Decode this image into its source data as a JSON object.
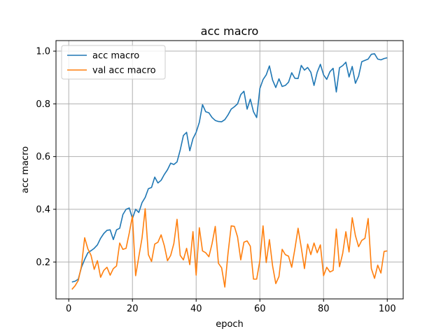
{
  "chart_data": {
    "type": "line",
    "title": "acc macro",
    "xlabel": "epoch",
    "ylabel": "acc macro",
    "xlim": [
      -4,
      105
    ],
    "ylim": [
      0.06,
      1.04
    ],
    "xticks": [
      0,
      20,
      40,
      60,
      80,
      100
    ],
    "yticks": [
      0.2,
      0.4,
      0.6,
      0.8,
      1.0
    ],
    "ytick_labels": [
      "0.2",
      "0.4",
      "0.6",
      "0.8",
      "1.0"
    ],
    "grid": true,
    "legend_position": "top-left",
    "x": [
      1,
      2,
      3,
      4,
      5,
      6,
      7,
      8,
      9,
      10,
      11,
      12,
      13,
      14,
      15,
      16,
      17,
      18,
      19,
      20,
      21,
      22,
      23,
      24,
      25,
      26,
      27,
      28,
      29,
      30,
      31,
      32,
      33,
      34,
      35,
      36,
      37,
      38,
      39,
      40,
      41,
      42,
      43,
      44,
      45,
      46,
      47,
      48,
      49,
      50,
      51,
      52,
      53,
      54,
      55,
      56,
      57,
      58,
      59,
      60,
      61,
      62,
      63,
      64,
      65,
      66,
      67,
      68,
      69,
      70,
      71,
      72,
      73,
      74,
      75,
      76,
      77,
      78,
      79,
      80,
      81,
      82,
      83,
      84,
      85,
      86,
      87,
      88,
      89,
      90,
      91,
      92,
      93,
      94,
      95,
      96,
      97,
      98,
      99,
      100
    ],
    "series": [
      {
        "name": "acc macro",
        "color": "#1f77b4",
        "values": [
          0.124,
          0.127,
          0.135,
          0.18,
          0.21,
          0.235,
          0.243,
          0.252,
          0.265,
          0.29,
          0.308,
          0.32,
          0.322,
          0.285,
          0.322,
          0.328,
          0.38,
          0.4,
          0.405,
          0.365,
          0.4,
          0.388,
          0.425,
          0.445,
          0.478,
          0.483,
          0.522,
          0.5,
          0.51,
          0.532,
          0.55,
          0.575,
          0.57,
          0.58,
          0.625,
          0.68,
          0.692,
          0.622,
          0.668,
          0.692,
          0.73,
          0.797,
          0.77,
          0.766,
          0.748,
          0.737,
          0.733,
          0.732,
          0.74,
          0.758,
          0.78,
          0.789,
          0.8,
          0.835,
          0.848,
          0.78,
          0.818,
          0.77,
          0.748,
          0.858,
          0.892,
          0.91,
          0.944,
          0.89,
          0.862,
          0.895,
          0.866,
          0.87,
          0.882,
          0.918,
          0.897,
          0.896,
          0.946,
          0.928,
          0.938,
          0.92,
          0.87,
          0.92,
          0.95,
          0.91,
          0.893,
          0.922,
          0.935,
          0.845,
          0.937,
          0.945,
          0.958,
          0.902,
          0.942,
          0.878,
          0.905,
          0.96,
          0.965,
          0.97,
          0.988,
          0.99,
          0.97,
          0.967,
          0.972,
          0.975
        ]
      },
      {
        "name": "val acc macro",
        "color": "#ff7f0e",
        "values": [
          0.096,
          0.11,
          0.13,
          0.185,
          0.292,
          0.25,
          0.225,
          0.172,
          0.205,
          0.142,
          0.168,
          0.18,
          0.15,
          0.175,
          0.185,
          0.272,
          0.248,
          0.252,
          0.31,
          0.375,
          0.148,
          0.22,
          0.29,
          0.402,
          0.228,
          0.202,
          0.268,
          0.275,
          0.303,
          0.262,
          0.205,
          0.225,
          0.27,
          0.362,
          0.225,
          0.208,
          0.252,
          0.19,
          0.315,
          0.15,
          0.33,
          0.242,
          0.235,
          0.22,
          0.27,
          0.335,
          0.195,
          0.178,
          0.105,
          0.232,
          0.337,
          0.335,
          0.295,
          0.208,
          0.275,
          0.28,
          0.26,
          0.135,
          0.135,
          0.205,
          0.337,
          0.198,
          0.285,
          0.185,
          0.118,
          0.145,
          0.248,
          0.228,
          0.222,
          0.18,
          0.25,
          0.328,
          0.255,
          0.175,
          0.268,
          0.228,
          0.272,
          0.235,
          0.265,
          0.148,
          0.18,
          0.162,
          0.168,
          0.325,
          0.182,
          0.232,
          0.315,
          0.238,
          0.368,
          0.3,
          0.258,
          0.282,
          0.29,
          0.365,
          0.175,
          0.138,
          0.188,
          0.158,
          0.24,
          0.242
        ]
      }
    ]
  }
}
